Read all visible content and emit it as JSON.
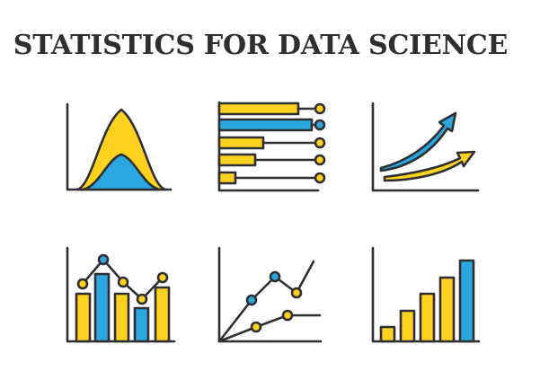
{
  "page": {
    "title": "STATISTICS FOR DATA SCIENCE"
  },
  "colors": {
    "yellow": "#ffd21f",
    "blue": "#2ba7df",
    "outline": "#2f2f33",
    "background": "#ffffff"
  },
  "icons": [
    {
      "name": "normal-distribution-icon"
    },
    {
      "name": "horizontal-bar-chart-icon"
    },
    {
      "name": "growth-arrows-icon"
    },
    {
      "name": "bar-line-chart-icon"
    },
    {
      "name": "scatter-line-chart-icon"
    },
    {
      "name": "bar-chart-icon"
    }
  ]
}
